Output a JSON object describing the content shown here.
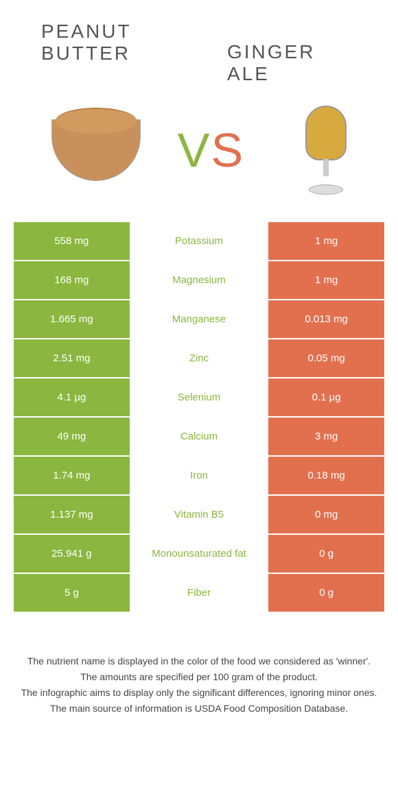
{
  "header": {
    "left_title": "Peanut butter",
    "right_title": "Ginger ale",
    "vs_v": "V",
    "vs_s": "S"
  },
  "colors": {
    "left": "#8bb63f",
    "right": "#e2704f",
    "mid_winner_left": "#8bb63f",
    "mid_winner_right": "#e2704f"
  },
  "rows": [
    {
      "left": "558 mg",
      "label": "Potassium",
      "right": "1 mg",
      "winner": "left"
    },
    {
      "left": "168 mg",
      "label": "Magnesium",
      "right": "1 mg",
      "winner": "left"
    },
    {
      "left": "1.665 mg",
      "label": "Manganese",
      "right": "0.013 mg",
      "winner": "left"
    },
    {
      "left": "2.51 mg",
      "label": "Zinc",
      "right": "0.05 mg",
      "winner": "left"
    },
    {
      "left": "4.1 µg",
      "label": "Selenium",
      "right": "0.1 µg",
      "winner": "left"
    },
    {
      "left": "49 mg",
      "label": "Calcium",
      "right": "3 mg",
      "winner": "left"
    },
    {
      "left": "1.74 mg",
      "label": "Iron",
      "right": "0.18 mg",
      "winner": "left"
    },
    {
      "left": "1.137 mg",
      "label": "Vitamin B5",
      "right": "0 mg",
      "winner": "left"
    },
    {
      "left": "25.941 g",
      "label": "Monounsaturated fat",
      "right": "0 g",
      "winner": "left"
    },
    {
      "left": "5 g",
      "label": "Fiber",
      "right": "0 g",
      "winner": "left"
    }
  ],
  "footer": {
    "line1": "The nutrient name is displayed in the color of the food we considered as 'winner'.",
    "line2": "The amounts are specified per 100 gram of the product.",
    "line3": "The infographic aims to display only the significant differences, ignoring minor ones.",
    "line4": "The main source of information is USDA Food Composition Database."
  }
}
